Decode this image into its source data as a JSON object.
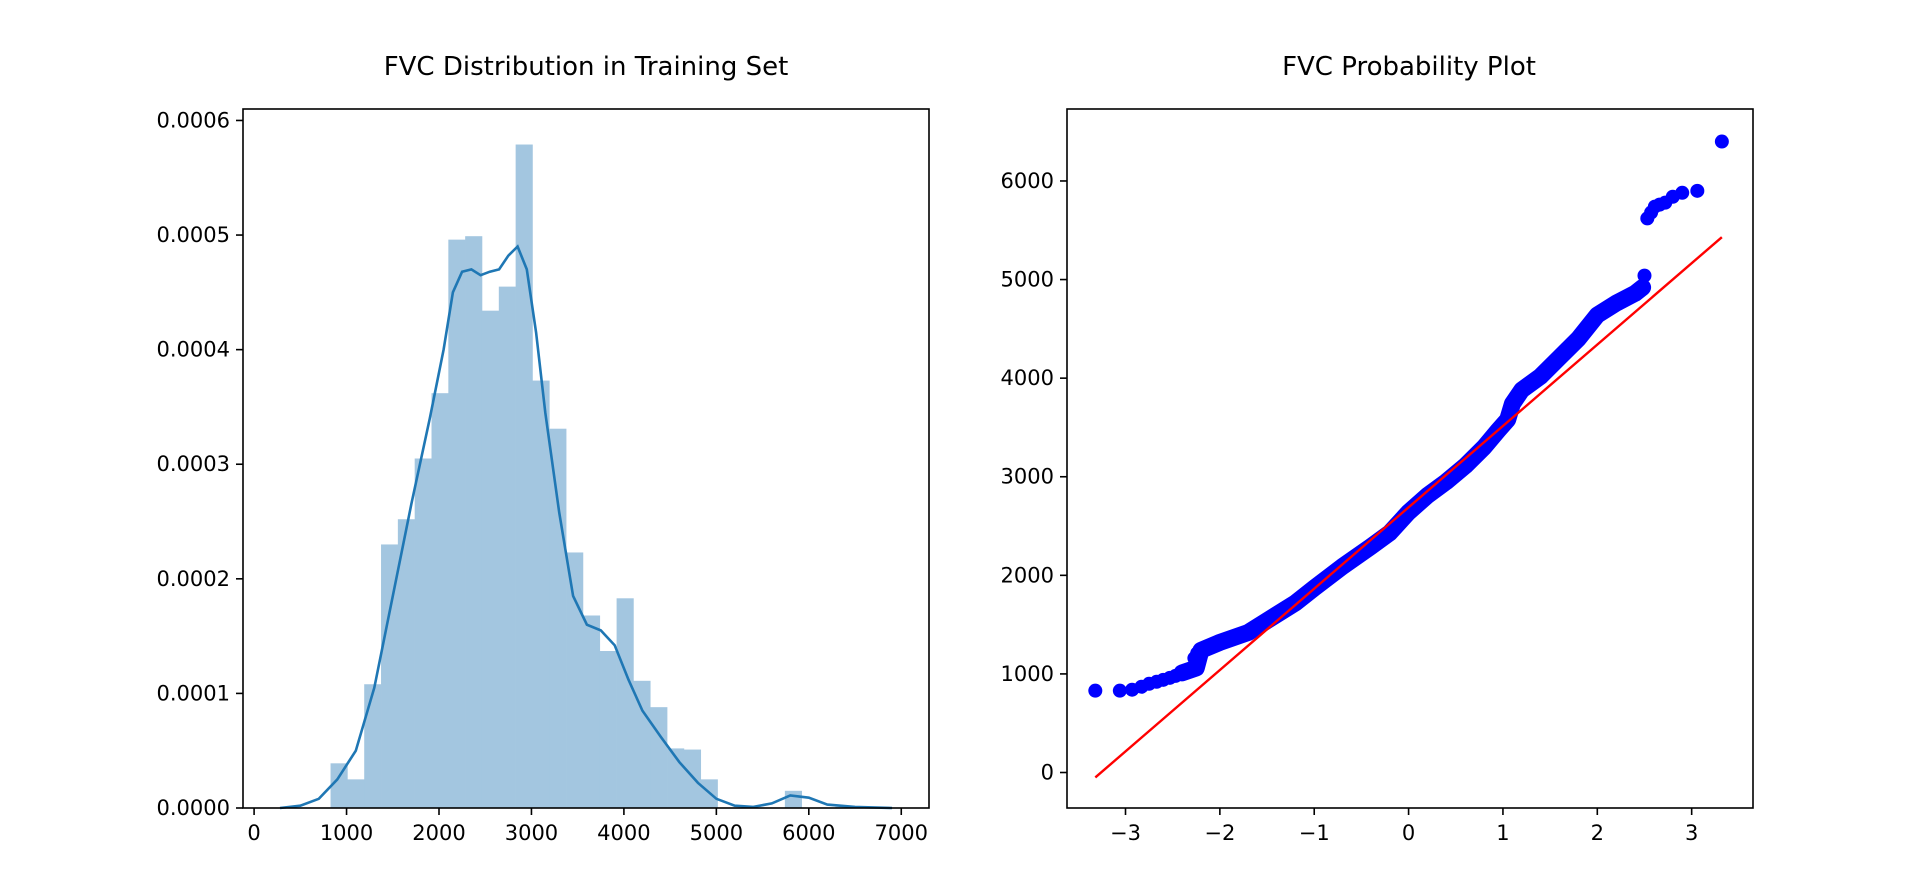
{
  "chart_data": [
    {
      "type": "histogram",
      "title": "FVC Distribution in Training Set",
      "xlabel": "",
      "ylabel": "",
      "xlim": [
        -120,
        7300
      ],
      "ylim": [
        0,
        0.00061
      ],
      "x_ticks": [
        0,
        1000,
        2000,
        3000,
        4000,
        5000,
        6000,
        7000
      ],
      "x_tick_labels": [
        "0",
        "1000",
        "2000",
        "3000",
        "4000",
        "5000",
        "6000",
        "7000"
      ],
      "y_ticks": [
        0,
        0.0001,
        0.0002,
        0.0003,
        0.0004,
        0.0005,
        0.0006
      ],
      "y_tick_labels": [
        "0.0000",
        "0.0001",
        "0.0002",
        "0.0003",
        "0.0004",
        "0.0005",
        "0.0006"
      ],
      "bar_color": "#a3c6e0",
      "kde_color": "#1f77b4",
      "bins": [
        {
          "x0": 827,
          "x1": 1009,
          "density": 3.9e-05
        },
        {
          "x0": 1009,
          "x1": 1191,
          "density": 2.5e-05
        },
        {
          "x0": 1191,
          "x1": 1373,
          "density": 0.000108
        },
        {
          "x0": 1373,
          "x1": 1555,
          "density": 0.00023
        },
        {
          "x0": 1555,
          "x1": 1737,
          "density": 0.000252
        },
        {
          "x0": 1737,
          "x1": 1919,
          "density": 0.000305
        },
        {
          "x0": 1919,
          "x1": 2101,
          "density": 0.000362
        },
        {
          "x0": 2101,
          "x1": 2283,
          "density": 0.000496
        },
        {
          "x0": 2283,
          "x1": 2465,
          "density": 0.000499
        },
        {
          "x0": 2465,
          "x1": 2647,
          "density": 0.000434
        },
        {
          "x0": 2647,
          "x1": 2829,
          "density": 0.000455
        },
        {
          "x0": 2829,
          "x1": 3011,
          "density": 0.000579
        },
        {
          "x0": 3011,
          "x1": 3193,
          "density": 0.000373
        },
        {
          "x0": 3193,
          "x1": 3375,
          "density": 0.000331
        },
        {
          "x0": 3375,
          "x1": 3557,
          "density": 0.000223
        },
        {
          "x0": 3557,
          "x1": 3739,
          "density": 0.000168
        },
        {
          "x0": 3739,
          "x1": 3921,
          "density": 0.000137
        },
        {
          "x0": 3921,
          "x1": 4103,
          "density": 0.000183
        },
        {
          "x0": 4103,
          "x1": 4285,
          "density": 0.000111
        },
        {
          "x0": 4285,
          "x1": 4467,
          "density": 8.8e-05
        },
        {
          "x0": 4467,
          "x1": 4649,
          "density": 5.2e-05
        },
        {
          "x0": 4649,
          "x1": 4831,
          "density": 5.1e-05
        },
        {
          "x0": 4831,
          "x1": 5013,
          "density": 2.5e-05
        },
        {
          "x0": 5013,
          "x1": 5195,
          "density": 0.0
        },
        {
          "x0": 5195,
          "x1": 5377,
          "density": 0.0
        },
        {
          "x0": 5377,
          "x1": 5559,
          "density": 0.0
        },
        {
          "x0": 5559,
          "x1": 5741,
          "density": 0.0
        },
        {
          "x0": 5741,
          "x1": 5923,
          "density": 1.5e-05
        },
        {
          "x0": 5923,
          "x1": 6105,
          "density": 0.0
        },
        {
          "x0": 6105,
          "x1": 6287,
          "density": 0.0
        },
        {
          "x0": 6287,
          "x1": 6469,
          "density": 1e-06
        }
      ],
      "kde": {
        "x": [
          280,
          500,
          700,
          900,
          1100,
          1300,
          1500,
          1700,
          1900,
          2050,
          2150,
          2250,
          2350,
          2450,
          2550,
          2650,
          2750,
          2850,
          2950,
          3050,
          3150,
          3300,
          3450,
          3600,
          3750,
          3900,
          4050,
          4200,
          4400,
          4600,
          4800,
          5000,
          5200,
          5400,
          5600,
          5800,
          6000,
          6200,
          6500,
          6900
        ],
        "y": [
          0,
          2e-06,
          8e-06,
          2.5e-05,
          5e-05,
          0.000105,
          0.000185,
          0.000265,
          0.00034,
          0.0004,
          0.00045,
          0.000468,
          0.00047,
          0.000465,
          0.000468,
          0.00047,
          0.000482,
          0.00049,
          0.00047,
          0.000415,
          0.000345,
          0.000258,
          0.000185,
          0.00016,
          0.000155,
          0.000142,
          0.000112,
          8.5e-05,
          6.2e-05,
          4e-05,
          2.2e-05,
          8e-06,
          2e-06,
          1e-06,
          4e-06,
          1.1e-05,
          9e-06,
          3e-06,
          1e-06,
          0
        ]
      }
    },
    {
      "type": "scatter",
      "title": "FVC Probability Plot",
      "xlabel": "",
      "ylabel": "",
      "xlim": [
        -3.62,
        3.65
      ],
      "ylim": [
        -360,
        6730
      ],
      "x_ticks": [
        -3,
        -2,
        -1,
        0,
        1,
        2,
        3
      ],
      "x_tick_labels": [
        "−3",
        "−2",
        "−1",
        "0",
        "1",
        "2",
        "3"
      ],
      "y_ticks": [
        0,
        1000,
        2000,
        3000,
        4000,
        5000,
        6000
      ],
      "y_tick_labels": [
        "0",
        "1000",
        "2000",
        "3000",
        "4000",
        "5000",
        "6000"
      ],
      "point_color": "#0000ff",
      "fit_line_color": "#ff0000",
      "fit_line": {
        "x": [
          -3.32,
          3.32
        ],
        "y": [
          -50,
          5430
        ]
      },
      "quantile_curve": {
        "x": [
          -2.4,
          -2.25,
          -2.2,
          -2.0,
          -1.7,
          -1.5,
          -1.2,
          -1.0,
          -0.7,
          -0.4,
          -0.2,
          0.0,
          0.2,
          0.4,
          0.6,
          0.8,
          0.95,
          1.05,
          1.1,
          1.2,
          1.4,
          1.6,
          1.8,
          2.0,
          2.2,
          2.4,
          2.48
        ],
        "y": [
          1010,
          1060,
          1240,
          1320,
          1420,
          1540,
          1720,
          1870,
          2090,
          2290,
          2430,
          2640,
          2810,
          2950,
          3110,
          3300,
          3470,
          3580,
          3740,
          3880,
          4020,
          4210,
          4400,
          4640,
          4760,
          4860,
          4920
        ]
      },
      "points": [
        {
          "x": -3.32,
          "y": 830
        },
        {
          "x": -3.06,
          "y": 830
        },
        {
          "x": -2.93,
          "y": 840
        },
        {
          "x": -2.83,
          "y": 870
        },
        {
          "x": -2.75,
          "y": 900
        },
        {
          "x": -2.67,
          "y": 920
        },
        {
          "x": -2.6,
          "y": 940
        },
        {
          "x": -2.53,
          "y": 960
        },
        {
          "x": -2.47,
          "y": 980
        },
        {
          "x": -2.42,
          "y": 1000
        },
        {
          "x": -2.36,
          "y": 1015
        },
        {
          "x": -2.3,
          "y": 1040
        },
        {
          "x": -2.26,
          "y": 1060
        },
        {
          "x": -2.27,
          "y": 1160
        },
        {
          "x": -2.24,
          "y": 1210
        },
        {
          "x": 2.5,
          "y": 5040
        },
        {
          "x": 2.53,
          "y": 5620
        },
        {
          "x": 2.57,
          "y": 5680
        },
        {
          "x": 2.61,
          "y": 5740
        },
        {
          "x": 2.66,
          "y": 5760
        },
        {
          "x": 2.72,
          "y": 5780
        },
        {
          "x": 2.8,
          "y": 5840
        },
        {
          "x": 2.9,
          "y": 5880
        },
        {
          "x": 3.06,
          "y": 5900
        },
        {
          "x": 3.32,
          "y": 6400
        }
      ]
    }
  ]
}
